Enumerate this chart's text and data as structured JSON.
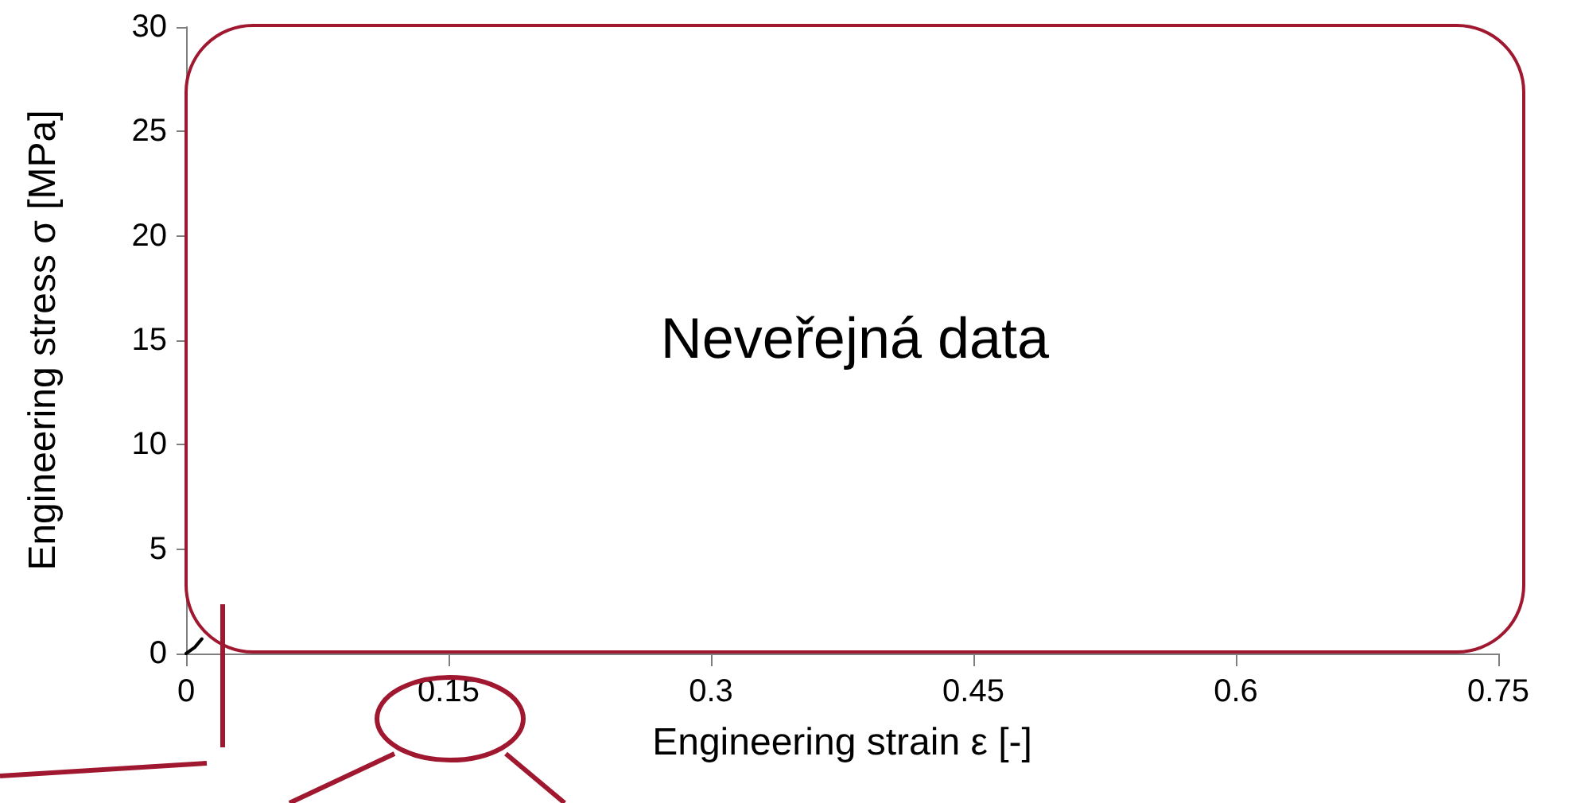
{
  "chart_data": {
    "type": "line",
    "xlabel": "Engineering strain ε [-]",
    "ylabel": "Engineering stress σ [MPa]",
    "annotations": [
      "Neveřejná data"
    ],
    "series": [
      {
        "color": "#000000",
        "x": [
          0,
          0.005,
          0.009
        ],
        "values": [
          0,
          0.3,
          0.7
        ]
      }
    ],
    "xlim": [
      0,
      0.75
    ],
    "xticks": [
      0,
      0.15,
      0.3,
      0.45,
      0.6,
      0.75
    ],
    "ylim": [
      0,
      30
    ],
    "yticks": [
      0,
      5,
      10,
      15,
      20,
      25,
      30
    ],
    "grid": false,
    "marker": "none",
    "line_style": "solid"
  }
}
